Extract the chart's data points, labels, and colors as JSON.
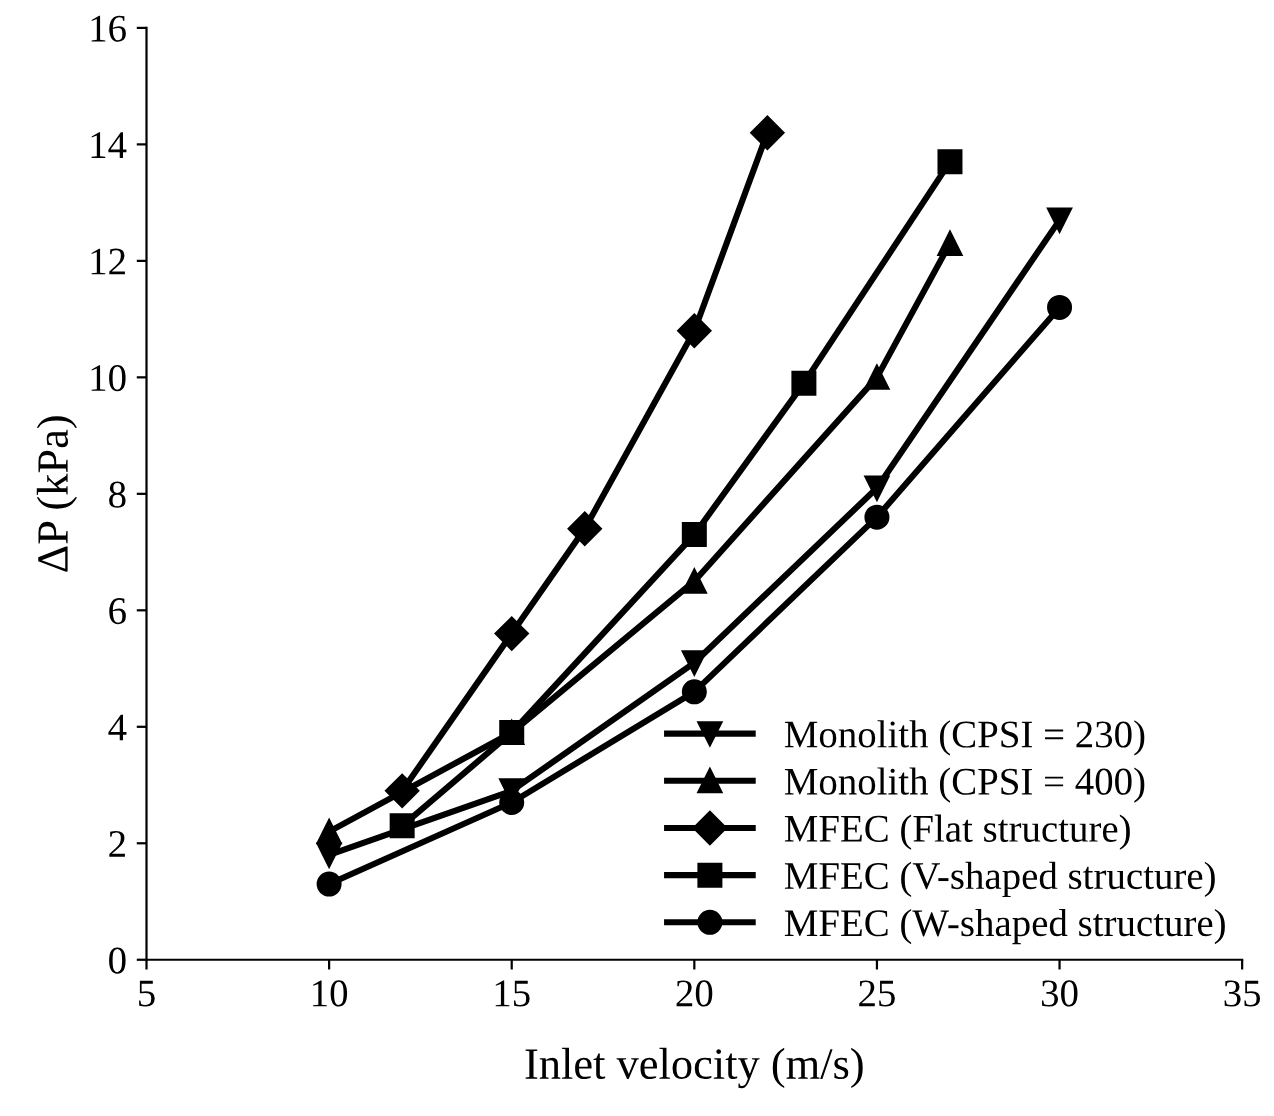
{
  "chart_data": {
    "type": "line",
    "xlabel": "Inlet velocity (m/s)",
    "ylabel": "ΔP (kPa)",
    "xlim": [
      5,
      35
    ],
    "xticks": [
      5,
      10,
      15,
      20,
      25,
      30,
      35
    ],
    "ylim": [
      0,
      16
    ],
    "yticks": [
      0,
      2,
      4,
      6,
      8,
      10,
      12,
      14,
      16
    ],
    "grid": false,
    "legend": "bottom right",
    "line_style": "solid",
    "series": [
      {
        "name": "Monolith (CPSI = 230)",
        "color": "#000000",
        "marker": "triangle_down",
        "x": [
          10,
          15,
          20,
          25,
          30
        ],
        "values": [
          1.8,
          2.9,
          5.1,
          8.1,
          12.7
        ]
      },
      {
        "name": "Monolith (CPSI = 400)",
        "color": "#000000",
        "marker": "triangle",
        "x": [
          10,
          15,
          20,
          25,
          27
        ],
        "values": [
          2.2,
          3.9,
          6.5,
          10.0,
          12.3
        ]
      },
      {
        "name": "MFEC (Flat structure)",
        "color": "#000000",
        "marker": "diamond",
        "x": [
          12,
          15,
          17,
          20,
          22
        ],
        "values": [
          2.9,
          5.6,
          7.4,
          10.8,
          14.2
        ]
      },
      {
        "name": "MFEC (V-shaped structure)",
        "color": "#000000",
        "marker": "square",
        "x": [
          12,
          15,
          20,
          23,
          27
        ],
        "values": [
          2.3,
          3.9,
          7.3,
          9.9,
          13.7
        ]
      },
      {
        "name": "MFEC (W-shaped structure)",
        "color": "#000000",
        "marker": "circle",
        "x": [
          10,
          15,
          20,
          25,
          30
        ],
        "values": [
          1.3,
          2.7,
          4.6,
          7.6,
          11.2
        ]
      }
    ]
  }
}
